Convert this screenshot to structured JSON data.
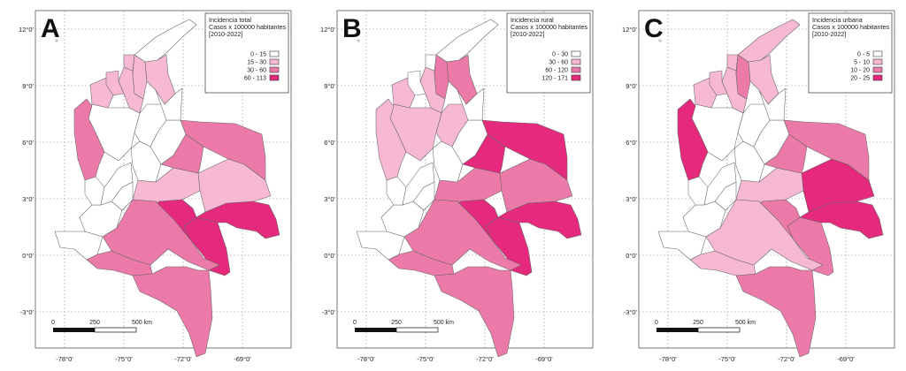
{
  "colors": {
    "c1": "#ffffff",
    "c2": "#f6b8d2",
    "c3": "#ec7aa9",
    "c4": "#e52a7e"
  },
  "axes": {
    "lat_labels": [
      "12°0'",
      "9°0'",
      "6°0'",
      "3°0'",
      "0°0'",
      "-3°0'"
    ],
    "lon_labels": [
      "-78°0'",
      "-75°0'",
      "-72°0'",
      "-69°0'"
    ]
  },
  "scalebar": {
    "ticks": [
      "0",
      "250",
      "500 km"
    ]
  },
  "panels": [
    {
      "letter": "A",
      "legend_title": [
        "Incidencia total",
        "Casos x 100000 habitantes",
        "[2010-2022]"
      ],
      "classes": [
        "0 - 15",
        "15 - 30",
        "30 - 60",
        "60 - 113"
      ],
      "region_classes": {
        "guajira": "c1",
        "magdalena": "c2",
        "cesar": "c2",
        "atlantico": "c2",
        "bolivar": "c2",
        "sucre": "c2",
        "cordoba": "c2",
        "antioquia": "c1",
        "choco": "c3",
        "santander": "c1",
        "nsantander": "c1",
        "boyaca": "c1",
        "cundinamarca": "c1",
        "valle": "c1",
        "cauca": "c1",
        "narino": "c1",
        "putumayo": "c3",
        "caqueta": "c3",
        "amazonas": "c3",
        "vaupes": "c4",
        "guaviare": "c4",
        "meta": "c2",
        "vichada": "c2",
        "casanare": "c3",
        "arauca": "c3",
        "huila": "c1",
        "tolima": "c1",
        "guainia": "c4"
      }
    },
    {
      "letter": "B",
      "legend_title": [
        "Incidencia rural",
        "Casos x 100000 habitantes",
        "[2010-2022]"
      ],
      "classes": [
        "0 - 30",
        "30 - 60",
        "60 - 120",
        "120 - 171"
      ],
      "region_classes": {
        "guajira": "c1",
        "magdalena": "c3",
        "cesar": "c3",
        "atlantico": "c1",
        "bolivar": "c2",
        "sucre": "c1",
        "cordoba": "c2",
        "antioquia": "c2",
        "choco": "c2",
        "santander": "c2",
        "nsantander": "c1",
        "boyaca": "c1",
        "cundinamarca": "c1",
        "valle": "c1",
        "cauca": "c1",
        "narino": "c1",
        "putumayo": "c3",
        "caqueta": "c3",
        "amazonas": "c3",
        "vaupes": "c4",
        "guaviare": "c4",
        "meta": "c3",
        "vichada": "c3",
        "casanare": "c4",
        "arauca": "c4",
        "huila": "c1",
        "tolima": "c1",
        "guainia": "c4"
      }
    },
    {
      "letter": "C",
      "legend_title": [
        "Incidencia urbana",
        "Casos x 100000 habitantes",
        "[2010-2022]"
      ],
      "classes": [
        "0 - 5",
        "5 - 10",
        "10 - 20",
        "20 - 25"
      ],
      "region_classes": {
        "guajira": "c2",
        "magdalena": "c3",
        "cesar": "c2",
        "atlantico": "c2",
        "bolivar": "c2",
        "sucre": "c2",
        "cordoba": "c2",
        "antioquia": "c1",
        "choco": "c4",
        "santander": "c1",
        "nsantander": "c1",
        "boyaca": "c1",
        "cundinamarca": "c1",
        "valle": "c1",
        "cauca": "c1",
        "narino": "c1",
        "putumayo": "c2",
        "caqueta": "c2",
        "amazonas": "c3",
        "vaupes": "c3",
        "guaviare": "c3",
        "meta": "c2",
        "vichada": "c4",
        "casanare": "c3",
        "arauca": "c3",
        "huila": "c1",
        "tolima": "c1",
        "guainia": "c4"
      }
    }
  ]
}
